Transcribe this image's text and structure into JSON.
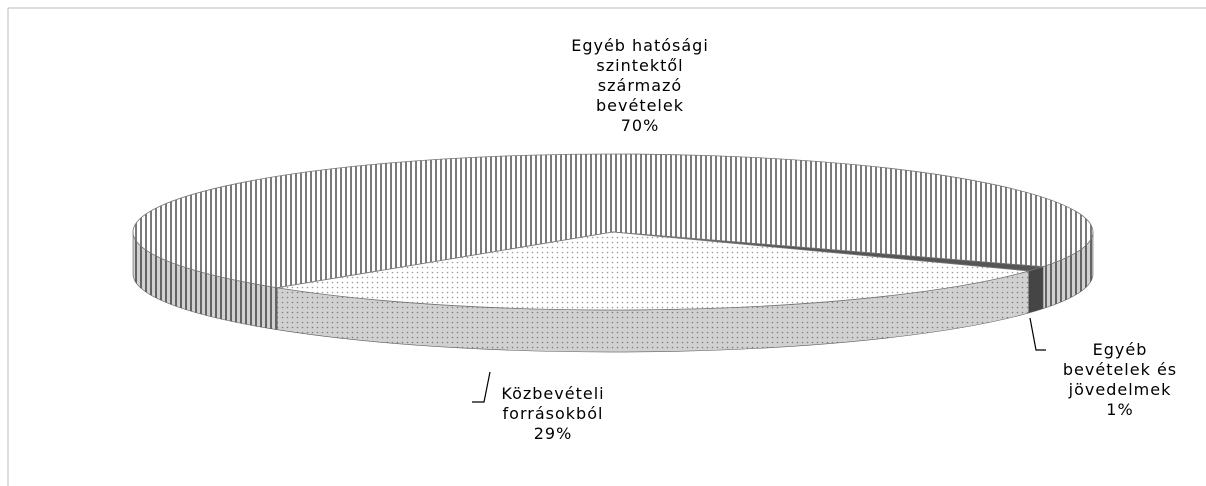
{
  "chart_data": {
    "type": "pie",
    "categories": [
      "Egyéb hatósági szintektől származó bevételek",
      "Egyéb bevételek és jövedelmek",
      "Közbevételi forrásokból"
    ],
    "values": [
      70,
      1,
      29
    ],
    "value_labels": [
      "70%",
      "1%",
      "29%"
    ],
    "colors": [
      "#7a7a7a",
      "#555555",
      "#9a9a9a"
    ]
  }
}
